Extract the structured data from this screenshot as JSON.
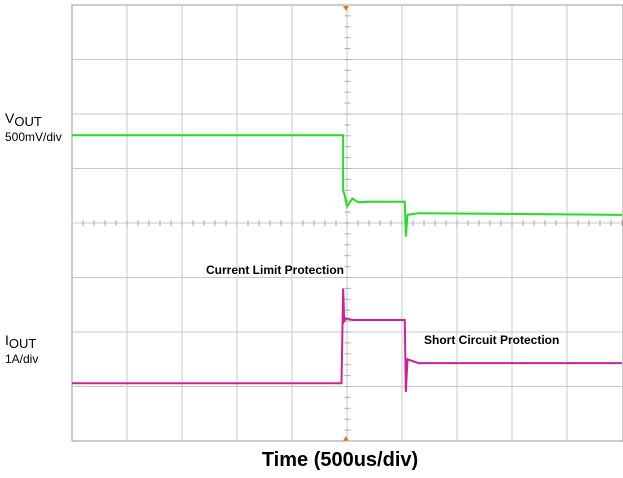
{
  "chart_data": {
    "type": "line",
    "xlabel": "Time (500us/div)",
    "annotations": [
      "Current Limit Protection",
      "Short Circuit Protection"
    ],
    "channels": [
      {
        "symbol": "V",
        "subscript": "OUT",
        "scale": "500mV/div"
      },
      {
        "symbol": "I",
        "subscript": "OUT",
        "scale": "1A/div"
      }
    ],
    "xlim": [
      0,
      10
    ],
    "ylim": [
      0,
      8
    ],
    "grid": true,
    "series": [
      {
        "color": "#22dd22",
        "x": [
          0,
          4.93,
          4.93,
          4.96,
          5.0,
          5.1,
          5.2,
          5.4,
          6.05,
          6.07,
          6.1,
          6.3,
          10
        ],
        "values": [
          5.61,
          5.61,
          4.6,
          4.5,
          4.3,
          4.45,
          4.38,
          4.39,
          4.39,
          3.75,
          4.15,
          4.18,
          4.15
        ]
      },
      {
        "color": "#cc2299",
        "x": [
          0,
          4.9,
          4.93,
          4.95,
          4.98,
          5.1,
          6.05,
          6.07,
          6.1,
          6.3,
          10
        ],
        "values": [
          1.06,
          1.06,
          2.8,
          2.2,
          2.25,
          2.22,
          2.22,
          0.9,
          1.5,
          1.43,
          1.43
        ]
      }
    ]
  }
}
